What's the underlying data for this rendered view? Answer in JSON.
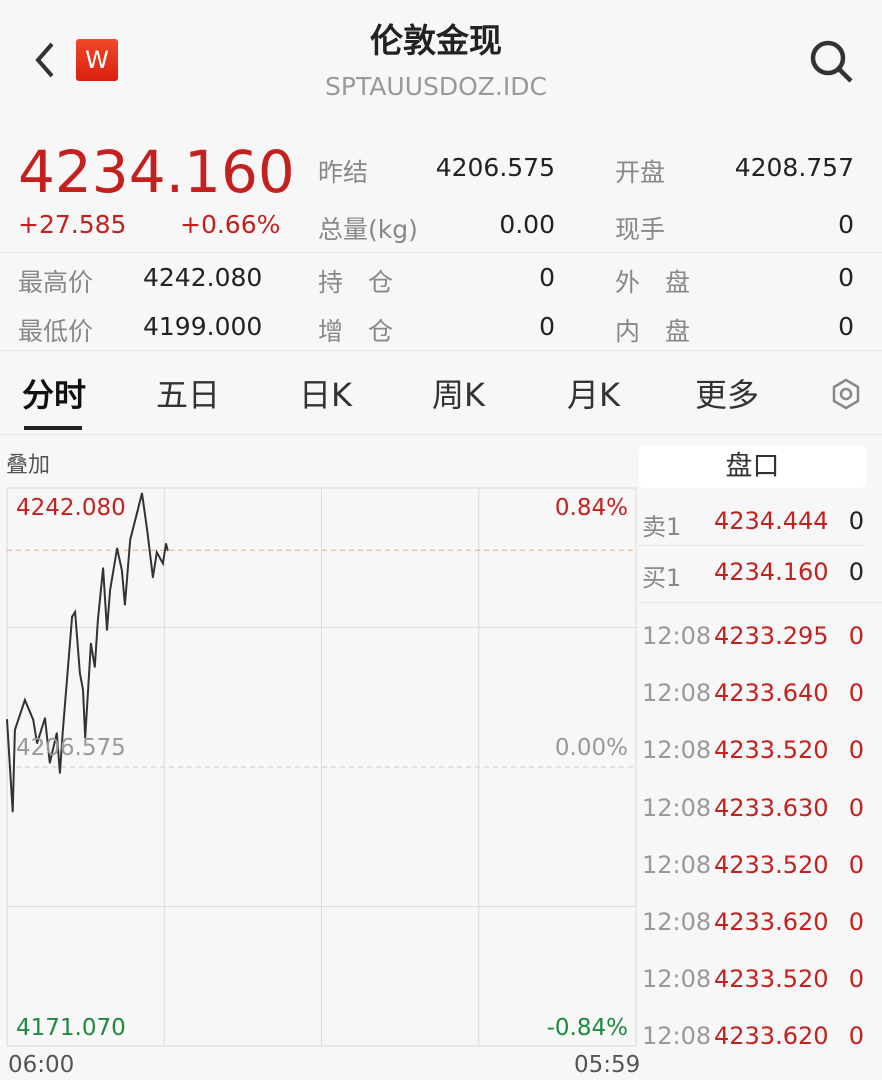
{
  "header": {
    "title": "伦敦金现",
    "code": "SPTAUUSDOZ.IDC",
    "badge": "W",
    "back_icon": "chevron-left-icon",
    "search_icon": "search-icon"
  },
  "quote": {
    "price": "4234.160",
    "change": "+27.585",
    "change_pct": "+0.66%",
    "prev_close_label": "昨结",
    "prev_close": "4206.575",
    "open_label": "开盘",
    "open": "4208.757",
    "volume_label": "总量(kg)",
    "volume": "0.00",
    "hand_label": "现手",
    "hand": "0",
    "high_label": "最高价",
    "high": "4242.080",
    "position_label": "持　仓",
    "position": "0",
    "outer_label": "外　盘",
    "outer": "0",
    "low_label": "最低价",
    "low": "4199.000",
    "add_label": "增　仓",
    "add": "0",
    "inner_label": "内　盘",
    "inner": "0"
  },
  "tabs": [
    {
      "label": "分时",
      "active": true
    },
    {
      "label": "五日"
    },
    {
      "label": "日K"
    },
    {
      "label": "周K"
    },
    {
      "label": "月K"
    },
    {
      "label": "更多"
    }
  ],
  "settings_icon": "hexagon-settings-icon",
  "overlay_label": "叠加",
  "colors": {
    "up": "#c4201e",
    "down": "#1d8a3c",
    "line": "#333333",
    "ref": "#f0a878"
  },
  "chart_data": {
    "type": "line",
    "y_labels": {
      "top": "4242.080",
      "mid": "4206.575",
      "bottom": "4171.070"
    },
    "pct_labels": {
      "top": "0.84%",
      "mid": "0.00%",
      "bottom": "-0.84%"
    },
    "x_labels": {
      "start": "06:00",
      "end": "05:59"
    },
    "ylim": [
      4171.07,
      4242.08
    ],
    "prev_close": 4206.575,
    "current": 4234.16,
    "grid": true,
    "points": [
      [
        "06:00",
        4212.6
      ],
      [
        "06:13",
        4200.9
      ],
      [
        "06:18",
        4211.3
      ],
      [
        "06:41",
        4215.1
      ],
      [
        "07:00",
        4212.6
      ],
      [
        "07:09",
        4209.6
      ],
      [
        "07:27",
        4212.8
      ],
      [
        "07:38",
        4207.1
      ],
      [
        "07:54",
        4210.9
      ],
      [
        "08:01",
        4205.8
      ],
      [
        "08:08",
        4211.3
      ],
      [
        "08:29",
        4225.7
      ],
      [
        "08:36",
        4226.3
      ],
      [
        "08:47",
        4218.5
      ],
      [
        "08:54",
        4216.4
      ],
      [
        "08:59",
        4210.3
      ],
      [
        "09:12",
        4222.3
      ],
      [
        "09:21",
        4219.3
      ],
      [
        "09:28",
        4225.3
      ],
      [
        "09:40",
        4231.9
      ],
      [
        "09:49",
        4224.0
      ],
      [
        "09:56",
        4229.1
      ],
      [
        "10:12",
        4234.4
      ],
      [
        "10:23",
        4231.6
      ],
      [
        "10:30",
        4227.2
      ],
      [
        "10:42",
        4235.5
      ],
      [
        "10:58",
        4239.0
      ],
      [
        "11:09",
        4241.4
      ],
      [
        "11:21",
        4236.7
      ],
      [
        "11:34",
        4230.7
      ],
      [
        "11:43",
        4233.9
      ],
      [
        "11:57",
        4232.5
      ],
      [
        "12:04",
        4235.0
      ],
      [
        "12:08",
        4234.16
      ]
    ]
  },
  "orderbook": {
    "title": "盘口",
    "ask": {
      "label": "卖1",
      "price": "4234.444",
      "vol": "0"
    },
    "bid": {
      "label": "买1",
      "price": "4234.160",
      "vol": "0"
    },
    "trades": [
      {
        "time": "12:08",
        "price": "4233.295",
        "vol": "0"
      },
      {
        "time": "12:08",
        "price": "4233.640",
        "vol": "0"
      },
      {
        "time": "12:08",
        "price": "4233.520",
        "vol": "0"
      },
      {
        "time": "12:08",
        "price": "4233.630",
        "vol": "0"
      },
      {
        "time": "12:08",
        "price": "4233.520",
        "vol": "0"
      },
      {
        "time": "12:08",
        "price": "4233.620",
        "vol": "0"
      },
      {
        "time": "12:08",
        "price": "4233.520",
        "vol": "0"
      },
      {
        "time": "12:08",
        "price": "4233.620",
        "vol": "0"
      }
    ]
  }
}
